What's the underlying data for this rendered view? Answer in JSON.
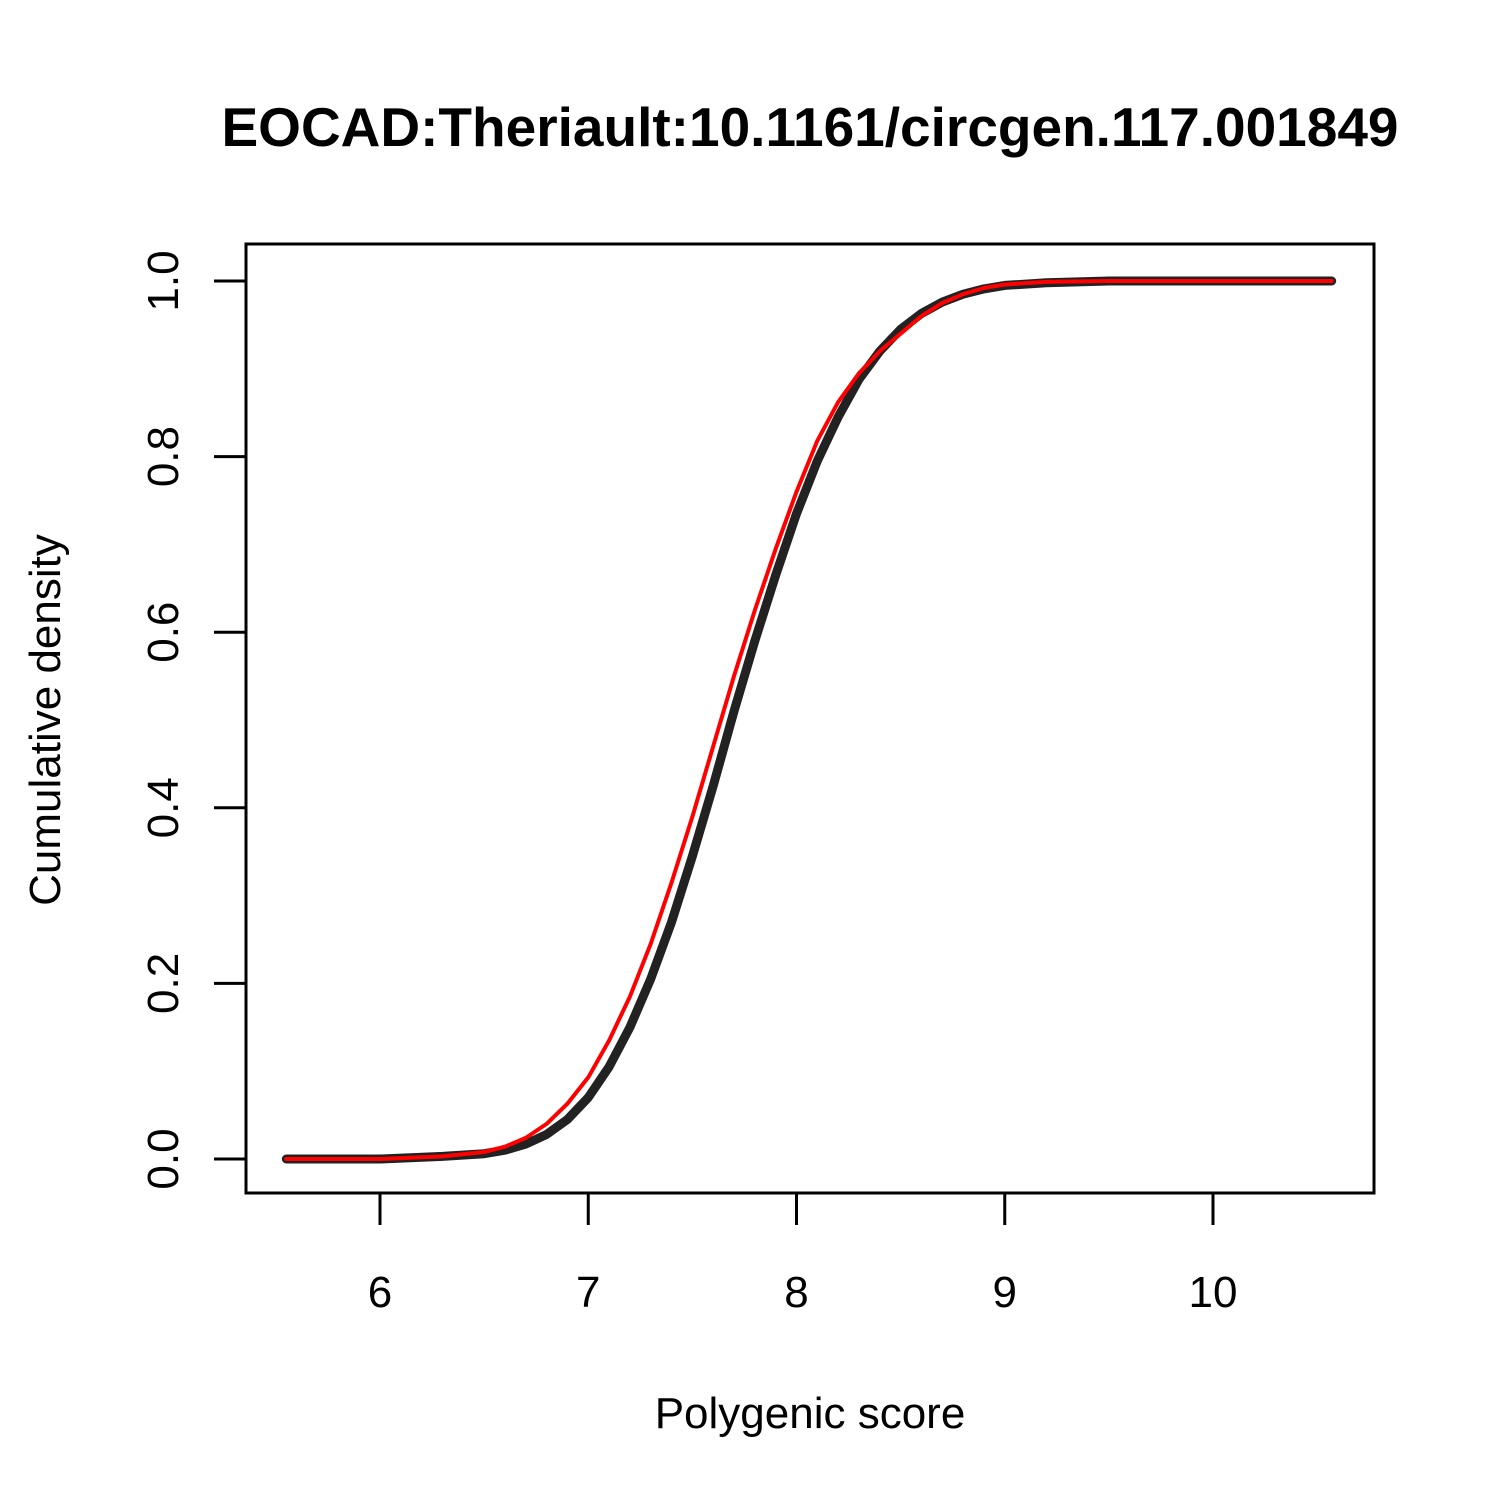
{
  "chart_data": {
    "type": "line",
    "title": "EOCAD:Theriault:10.1161/circgen.117.001849",
    "xlabel": "Polygenic score",
    "ylabel": "Cumulative density",
    "xlim": [
      5.55,
      10.6
    ],
    "ylim": [
      0,
      1.0
    ],
    "x_ticks": [
      6,
      7,
      8,
      9,
      10
    ],
    "x_tick_labels": [
      "6",
      "7",
      "8",
      "9",
      "10"
    ],
    "y_ticks": [
      0.0,
      0.2,
      0.4,
      0.6,
      0.8,
      1.0
    ],
    "y_tick_labels": [
      "0.0",
      "0.2",
      "0.4",
      "0.6",
      "0.8",
      "1.0"
    ],
    "grid": false,
    "legend": "none",
    "series": [
      {
        "color": "#222222",
        "x": [
          5.55,
          6.0,
          6.3,
          6.5,
          6.6,
          6.7,
          6.8,
          6.9,
          7.0,
          7.1,
          7.2,
          7.3,
          7.4,
          7.5,
          7.6,
          7.7,
          7.8,
          7.9,
          8.0,
          8.1,
          8.2,
          8.3,
          8.4,
          8.5,
          8.6,
          8.7,
          8.8,
          8.9,
          9.0,
          9.2,
          9.5,
          10.0,
          10.57
        ],
        "y": [
          0.0,
          0.0,
          0.003,
          0.006,
          0.01,
          0.017,
          0.028,
          0.045,
          0.07,
          0.105,
          0.15,
          0.205,
          0.27,
          0.345,
          0.425,
          0.51,
          0.59,
          0.665,
          0.735,
          0.795,
          0.845,
          0.888,
          0.92,
          0.945,
          0.963,
          0.976,
          0.985,
          0.991,
          0.995,
          0.998,
          1.0,
          1.0,
          1.0
        ]
      },
      {
        "color": "#ff0000",
        "x": [
          5.55,
          6.0,
          6.3,
          6.5,
          6.6,
          6.7,
          6.8,
          6.9,
          7.0,
          7.1,
          7.2,
          7.3,
          7.4,
          7.5,
          7.6,
          7.7,
          7.8,
          7.9,
          8.0,
          8.1,
          8.2,
          8.3,
          8.4,
          8.5,
          8.6,
          8.7,
          8.8,
          8.9,
          9.0,
          9.2,
          9.5,
          10.0,
          10.57
        ],
        "y": [
          0.0,
          0.0,
          0.003,
          0.008,
          0.014,
          0.024,
          0.04,
          0.063,
          0.093,
          0.135,
          0.185,
          0.245,
          0.315,
          0.39,
          0.47,
          0.55,
          0.625,
          0.695,
          0.76,
          0.818,
          0.862,
          0.895,
          0.92,
          0.94,
          0.96,
          0.975,
          0.985,
          0.992,
          0.996,
          0.999,
          1.0,
          1.0,
          1.0
        ]
      }
    ]
  }
}
